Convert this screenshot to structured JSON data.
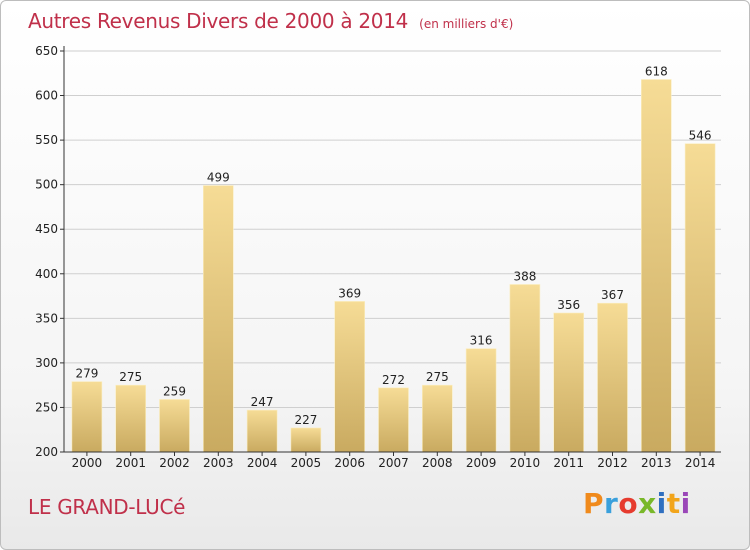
{
  "header": {
    "title": "Autres Revenus Divers de 2000 à 2014",
    "unit": "(en milliers d'€)"
  },
  "footer": {
    "place": "LE GRAND-LUCé",
    "logo_letters": [
      "P",
      "r",
      "o",
      "x",
      "i",
      "t",
      "i"
    ],
    "logo_colors": [
      "#f08a1c",
      "#3aa0dc",
      "#e63b2e",
      "#79b829",
      "#2f6fc0",
      "#f2a51b",
      "#9a47b8"
    ]
  },
  "colors": {
    "title": "#c0304a",
    "bar_light": "#f6dc96",
    "bar_dark": "#c9aa60",
    "grid": "#cfcfcf",
    "axis": "#333333"
  },
  "chart_data": {
    "type": "bar",
    "categories": [
      "2000",
      "2001",
      "2002",
      "2003",
      "2004",
      "2005",
      "2006",
      "2007",
      "2008",
      "2009",
      "2010",
      "2011",
      "2012",
      "2013",
      "2014"
    ],
    "values": [
      279,
      275,
      259,
      499,
      247,
      227,
      369,
      272,
      275,
      316,
      388,
      356,
      367,
      618,
      546
    ],
    "title": "Autres Revenus Divers de 2000 à 2014",
    "xlabel": "",
    "ylabel": "",
    "ylim": [
      200,
      650
    ],
    "yticks": [
      200,
      250,
      300,
      350,
      400,
      450,
      500,
      550,
      600,
      650
    ],
    "grid": true,
    "data_labels": true
  }
}
